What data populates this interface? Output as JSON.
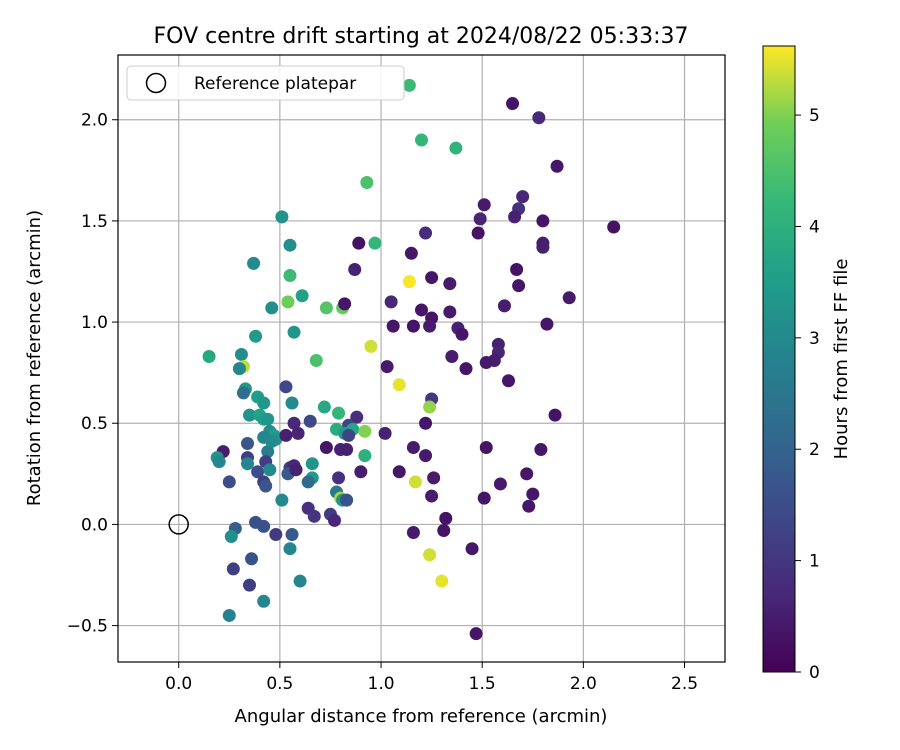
{
  "chart_data": {
    "type": "scatter",
    "title": "FOV centre drift starting at 2024/08/22 05:33:37",
    "xlabel": "Angular distance from reference (arcmin)",
    "ylabel": "Rotation from reference (arcmin)",
    "xlim": [
      -0.3,
      2.7
    ],
    "ylim": [
      -0.68,
      2.32
    ],
    "xticks": [
      0.0,
      0.5,
      1.0,
      1.5,
      2.0,
      2.5
    ],
    "xtick_labels": [
      "0.0",
      "0.5",
      "1.0",
      "1.5",
      "2.0",
      "2.5"
    ],
    "yticks": [
      -0.5,
      0.0,
      0.5,
      1.0,
      1.5,
      2.0
    ],
    "ytick_labels": [
      "−0.5",
      "0.0",
      "0.5",
      "1.0",
      "1.5",
      "2.0"
    ],
    "grid": true,
    "legend": {
      "position": "top-left",
      "entries": [
        "Reference platepar"
      ]
    },
    "reference_point": {
      "x": 0.0,
      "y": 0.0
    },
    "colorbar": {
      "label": "Hours from first FF file",
      "colormap": "viridis",
      "range": [
        0,
        5.62
      ],
      "ticks": [
        0,
        1,
        2,
        3,
        4,
        5
      ],
      "tick_labels": [
        "0",
        "1",
        "2",
        "3",
        "4",
        "5"
      ]
    },
    "points": [
      {
        "x": 1.65,
        "y": 2.08,
        "c": 0.35
      },
      {
        "x": 1.78,
        "y": 2.01,
        "c": 0.75
      },
      {
        "x": 1.14,
        "y": 2.17,
        "c": 4.3
      },
      {
        "x": 1.2,
        "y": 1.9,
        "c": 4.2
      },
      {
        "x": 1.37,
        "y": 1.86,
        "c": 4.1
      },
      {
        "x": 0.93,
        "y": 1.69,
        "c": 4.5
      },
      {
        "x": 1.87,
        "y": 1.77,
        "c": 0.4
      },
      {
        "x": 1.51,
        "y": 1.58,
        "c": 0.45
      },
      {
        "x": 1.7,
        "y": 1.62,
        "c": 0.7
      },
      {
        "x": 1.49,
        "y": 1.51,
        "c": 0.65
      },
      {
        "x": 1.68,
        "y": 1.56,
        "c": 0.9
      },
      {
        "x": 1.66,
        "y": 1.52,
        "c": 0.6
      },
      {
        "x": 1.8,
        "y": 1.5,
        "c": 0.35
      },
      {
        "x": 2.15,
        "y": 1.47,
        "c": 0.3
      },
      {
        "x": 1.48,
        "y": 1.44,
        "c": 0.3
      },
      {
        "x": 1.22,
        "y": 1.44,
        "c": 0.8
      },
      {
        "x": 0.51,
        "y": 1.52,
        "c": 3.2
      },
      {
        "x": 0.55,
        "y": 1.38,
        "c": 3.1
      },
      {
        "x": 0.37,
        "y": 1.29,
        "c": 3.0
      },
      {
        "x": 0.89,
        "y": 1.39,
        "c": 0.3
      },
      {
        "x": 0.97,
        "y": 1.39,
        "c": 4.2
      },
      {
        "x": 1.15,
        "y": 1.34,
        "c": 0.4
      },
      {
        "x": 1.8,
        "y": 1.39,
        "c": 0.5
      },
      {
        "x": 1.8,
        "y": 1.37,
        "c": 0.55
      },
      {
        "x": 0.55,
        "y": 1.23,
        "c": 4.3
      },
      {
        "x": 0.87,
        "y": 1.26,
        "c": 0.6
      },
      {
        "x": 1.14,
        "y": 1.2,
        "c": 5.6
      },
      {
        "x": 1.25,
        "y": 1.22,
        "c": 0.4
      },
      {
        "x": 1.34,
        "y": 1.19,
        "c": 0.45
      },
      {
        "x": 1.67,
        "y": 1.26,
        "c": 0.35
      },
      {
        "x": 1.68,
        "y": 1.18,
        "c": 0.4
      },
      {
        "x": 1.93,
        "y": 1.12,
        "c": 0.45
      },
      {
        "x": 0.54,
        "y": 1.1,
        "c": 4.9
      },
      {
        "x": 0.61,
        "y": 1.13,
        "c": 3.6
      },
      {
        "x": 0.46,
        "y": 1.07,
        "c": 3.1
      },
      {
        "x": 0.73,
        "y": 1.07,
        "c": 4.6
      },
      {
        "x": 0.81,
        "y": 1.07,
        "c": 4.8
      },
      {
        "x": 0.82,
        "y": 1.09,
        "c": 0.4
      },
      {
        "x": 1.05,
        "y": 1.1,
        "c": 0.7
      },
      {
        "x": 1.2,
        "y": 1.06,
        "c": 0.4
      },
      {
        "x": 1.25,
        "y": 1.02,
        "c": 0.35
      },
      {
        "x": 1.61,
        "y": 1.08,
        "c": 0.5
      },
      {
        "x": 1.34,
        "y": 1.05,
        "c": 0.45
      },
      {
        "x": 0.38,
        "y": 0.93,
        "c": 3.4
      },
      {
        "x": 0.57,
        "y": 0.95,
        "c": 3.3
      },
      {
        "x": 1.06,
        "y": 0.98,
        "c": 0.4
      },
      {
        "x": 1.16,
        "y": 0.98,
        "c": 0.35
      },
      {
        "x": 1.24,
        "y": 0.98,
        "c": 0.45
      },
      {
        "x": 1.38,
        "y": 0.97,
        "c": 0.6
      },
      {
        "x": 1.4,
        "y": 0.94,
        "c": 0.4
      },
      {
        "x": 1.82,
        "y": 0.99,
        "c": 0.4
      },
      {
        "x": 0.15,
        "y": 0.83,
        "c": 3.8
      },
      {
        "x": 0.31,
        "y": 0.84,
        "c": 3.1
      },
      {
        "x": 0.32,
        "y": 0.78,
        "c": 5.3
      },
      {
        "x": 0.68,
        "y": 0.81,
        "c": 4.5
      },
      {
        "x": 0.95,
        "y": 0.88,
        "c": 5.4
      },
      {
        "x": 1.35,
        "y": 0.83,
        "c": 0.5
      },
      {
        "x": 1.58,
        "y": 0.89,
        "c": 0.55
      },
      {
        "x": 1.58,
        "y": 0.85,
        "c": 0.65
      },
      {
        "x": 1.56,
        "y": 0.81,
        "c": 0.5
      },
      {
        "x": 1.52,
        "y": 0.8,
        "c": 0.45
      },
      {
        "x": 1.42,
        "y": 0.77,
        "c": 0.35
      },
      {
        "x": 1.03,
        "y": 0.78,
        "c": 0.45
      },
      {
        "x": 1.63,
        "y": 0.71,
        "c": 0.4
      },
      {
        "x": 0.3,
        "y": 0.77,
        "c": 2.9
      },
      {
        "x": 0.33,
        "y": 0.67,
        "c": 3.3
      },
      {
        "x": 0.32,
        "y": 0.65,
        "c": 2.3
      },
      {
        "x": 0.53,
        "y": 0.68,
        "c": 1.4
      },
      {
        "x": 1.09,
        "y": 0.69,
        "c": 5.5
      },
      {
        "x": 1.25,
        "y": 0.62,
        "c": 1.0
      },
      {
        "x": 1.24,
        "y": 0.58,
        "c": 5.1
      },
      {
        "x": 1.86,
        "y": 0.54,
        "c": 0.35
      },
      {
        "x": 0.39,
        "y": 0.63,
        "c": 3.5
      },
      {
        "x": 0.42,
        "y": 0.6,
        "c": 3.3
      },
      {
        "x": 0.56,
        "y": 0.6,
        "c": 3.0
      },
      {
        "x": 0.35,
        "y": 0.54,
        "c": 3.2
      },
      {
        "x": 0.4,
        "y": 0.54,
        "c": 3.6
      },
      {
        "x": 0.42,
        "y": 0.52,
        "c": 3.5
      },
      {
        "x": 0.44,
        "y": 0.52,
        "c": 3.3
      },
      {
        "x": 0.65,
        "y": 0.51,
        "c": 1.4
      },
      {
        "x": 0.72,
        "y": 0.58,
        "c": 3.8
      },
      {
        "x": 0.79,
        "y": 0.55,
        "c": 4.2
      },
      {
        "x": 0.88,
        "y": 0.53,
        "c": 0.8
      },
      {
        "x": 0.84,
        "y": 0.49,
        "c": 1.3
      },
      {
        "x": 0.57,
        "y": 0.5,
        "c": 0.7
      },
      {
        "x": 0.78,
        "y": 0.47,
        "c": 3.9
      },
      {
        "x": 0.86,
        "y": 0.47,
        "c": 3.7
      },
      {
        "x": 0.92,
        "y": 0.46,
        "c": 5.0
      },
      {
        "x": 1.22,
        "y": 0.5,
        "c": 0.4
      },
      {
        "x": 0.45,
        "y": 0.46,
        "c": 3.1
      },
      {
        "x": 0.47,
        "y": 0.44,
        "c": 3.4
      },
      {
        "x": 0.42,
        "y": 0.43,
        "c": 2.9
      },
      {
        "x": 0.48,
        "y": 0.42,
        "c": 3.3
      },
      {
        "x": 0.53,
        "y": 0.44,
        "c": 0.55
      },
      {
        "x": 0.59,
        "y": 0.45,
        "c": 0.65
      },
      {
        "x": 0.82,
        "y": 0.45,
        "c": 3.4
      },
      {
        "x": 0.84,
        "y": 0.44,
        "c": 1.3
      },
      {
        "x": 1.02,
        "y": 0.45,
        "c": 0.6
      },
      {
        "x": 0.34,
        "y": 0.4,
        "c": 1.7
      },
      {
        "x": 0.44,
        "y": 0.36,
        "c": 2.7
      },
      {
        "x": 0.46,
        "y": 0.41,
        "c": 3.0
      },
      {
        "x": 0.22,
        "y": 0.36,
        "c": 0.5
      },
      {
        "x": 0.19,
        "y": 0.33,
        "c": 3.3
      },
      {
        "x": 0.2,
        "y": 0.31,
        "c": 2.9
      },
      {
        "x": 0.34,
        "y": 0.33,
        "c": 1.2
      },
      {
        "x": 0.34,
        "y": 0.3,
        "c": 2.9
      },
      {
        "x": 0.43,
        "y": 0.31,
        "c": 1.2
      },
      {
        "x": 0.55,
        "y": 0.28,
        "c": 1.1
      },
      {
        "x": 0.57,
        "y": 0.29,
        "c": 0.7
      },
      {
        "x": 0.73,
        "y": 0.38,
        "c": 0.4
      },
      {
        "x": 0.83,
        "y": 0.37,
        "c": 0.6
      },
      {
        "x": 0.8,
        "y": 0.37,
        "c": 0.55
      },
      {
        "x": 1.16,
        "y": 0.38,
        "c": 0.5
      },
      {
        "x": 1.22,
        "y": 0.34,
        "c": 0.45
      },
      {
        "x": 1.52,
        "y": 0.38,
        "c": 0.35
      },
      {
        "x": 1.79,
        "y": 0.37,
        "c": 0.4
      },
      {
        "x": 0.39,
        "y": 0.26,
        "c": 1.5
      },
      {
        "x": 0.45,
        "y": 0.27,
        "c": 3.0
      },
      {
        "x": 0.54,
        "y": 0.25,
        "c": 1.8
      },
      {
        "x": 0.58,
        "y": 0.27,
        "c": 0.6
      },
      {
        "x": 0.66,
        "y": 0.3,
        "c": 3.3
      },
      {
        "x": 0.66,
        "y": 0.23,
        "c": 3.4
      },
      {
        "x": 0.79,
        "y": 0.23,
        "c": 0.9
      },
      {
        "x": 0.92,
        "y": 0.34,
        "c": 4.0
      },
      {
        "x": 0.9,
        "y": 0.26,
        "c": 0.5
      },
      {
        "x": 1.09,
        "y": 0.26,
        "c": 0.4
      },
      {
        "x": 1.26,
        "y": 0.23,
        "c": 0.45
      },
      {
        "x": 1.72,
        "y": 0.25,
        "c": 0.4
      },
      {
        "x": 0.25,
        "y": 0.21,
        "c": 1.5
      },
      {
        "x": 0.42,
        "y": 0.21,
        "c": 1.2
      },
      {
        "x": 0.43,
        "y": 0.19,
        "c": 1.7
      },
      {
        "x": 0.64,
        "y": 0.21,
        "c": 2.2
      },
      {
        "x": 1.17,
        "y": 0.21,
        "c": 5.4
      },
      {
        "x": 1.59,
        "y": 0.2,
        "c": 0.45
      },
      {
        "x": 1.75,
        "y": 0.15,
        "c": 0.4
      },
      {
        "x": 0.51,
        "y": 0.12,
        "c": 3.0
      },
      {
        "x": 0.78,
        "y": 0.16,
        "c": 2.5
      },
      {
        "x": 0.8,
        "y": 0.13,
        "c": 5.2
      },
      {
        "x": 0.81,
        "y": 0.12,
        "c": 3.2
      },
      {
        "x": 0.83,
        "y": 0.12,
        "c": 1.6
      },
      {
        "x": 1.25,
        "y": 0.14,
        "c": 0.5
      },
      {
        "x": 1.51,
        "y": 0.13,
        "c": 0.4
      },
      {
        "x": 1.73,
        "y": 0.09,
        "c": 0.4
      },
      {
        "x": 0.64,
        "y": 0.08,
        "c": 0.9
      },
      {
        "x": 0.67,
        "y": 0.04,
        "c": 1.0
      },
      {
        "x": 0.75,
        "y": 0.05,
        "c": 1.1
      },
      {
        "x": 0.77,
        "y": 0.02,
        "c": 0.7
      },
      {
        "x": 1.32,
        "y": 0.03,
        "c": 0.35
      },
      {
        "x": 0.38,
        "y": 0.01,
        "c": 1.6
      },
      {
        "x": 0.42,
        "y": -0.01,
        "c": 1.6
      },
      {
        "x": 0.28,
        "y": -0.02,
        "c": 1.9
      },
      {
        "x": 0.26,
        "y": -0.06,
        "c": 3.1
      },
      {
        "x": 0.48,
        "y": -0.05,
        "c": 1.1
      },
      {
        "x": 0.56,
        "y": -0.05,
        "c": 1.8
      },
      {
        "x": 1.16,
        "y": -0.04,
        "c": 0.45
      },
      {
        "x": 1.31,
        "y": -0.03,
        "c": 0.35
      },
      {
        "x": 0.55,
        "y": -0.12,
        "c": 2.9
      },
      {
        "x": 1.45,
        "y": -0.12,
        "c": 0.4
      },
      {
        "x": 1.24,
        "y": -0.15,
        "c": 5.4
      },
      {
        "x": 0.36,
        "y": -0.17,
        "c": 1.6
      },
      {
        "x": 0.27,
        "y": -0.22,
        "c": 1.2
      },
      {
        "x": 0.6,
        "y": -0.28,
        "c": 2.9
      },
      {
        "x": 1.3,
        "y": -0.28,
        "c": 5.5
      },
      {
        "x": 0.35,
        "y": -0.3,
        "c": 1.2
      },
      {
        "x": 0.42,
        "y": -0.38,
        "c": 2.9
      },
      {
        "x": 0.25,
        "y": -0.45,
        "c": 2.8
      },
      {
        "x": 1.47,
        "y": -0.54,
        "c": 0.4
      }
    ]
  }
}
